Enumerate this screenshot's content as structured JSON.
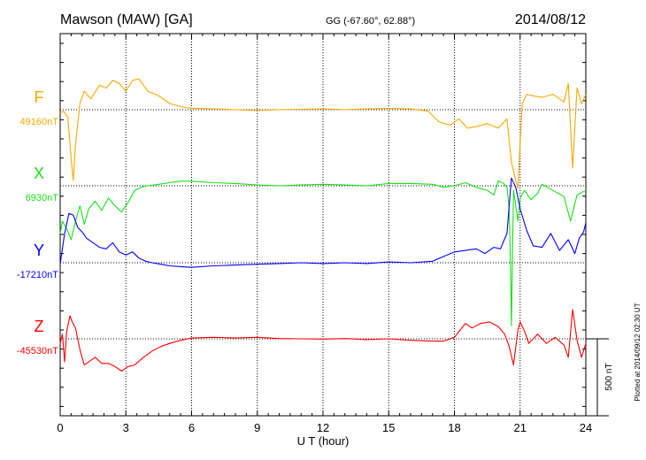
{
  "header": {
    "station": "Mawson (MAW)  [GA]",
    "coords": "GG (-67.60°,  62.88°)",
    "date": "2014/08/12"
  },
  "footer": {
    "plotted": "Plotted at 2014/09/12 02:30 UT",
    "scale": "500 nT"
  },
  "colors": {
    "F": "#f5a800",
    "X": "#19e019",
    "Y": "#0000ff",
    "Z": "#ff0000"
  },
  "chart_data": {
    "type": "line",
    "xlabel": "U T (hour)",
    "xlim": [
      0,
      24
    ],
    "xticks": [
      0,
      3,
      6,
      9,
      12,
      15,
      18,
      21,
      24
    ],
    "scale_bar_nT": 500,
    "grid": true,
    "series": [
      {
        "name": "F",
        "baseline_label": "49160nT",
        "baseline": 49160,
        "x": [
          0,
          0.15,
          0.35,
          0.5,
          0.6,
          0.7,
          0.9,
          1.1,
          1.4,
          1.8,
          2.1,
          2.4,
          2.7,
          3.0,
          3.3,
          3.6,
          4.0,
          4.5,
          5.0,
          5.5,
          6.0,
          7,
          8,
          9,
          10,
          11,
          12,
          13,
          14,
          15,
          16,
          16.8,
          17.3,
          17.8,
          18.2,
          18.6,
          19.0,
          19.5,
          20.0,
          20.4,
          20.6,
          20.8,
          20.9,
          21.0,
          21.1,
          21.3,
          21.6,
          22.0,
          22.5,
          23.0,
          23.2,
          23.4,
          23.6,
          23.8,
          24.0
        ],
        "y": [
          49140,
          49150,
          49110,
          48840,
          48700,
          48930,
          49200,
          49280,
          49230,
          49320,
          49300,
          49350,
          49330,
          49280,
          49350,
          49360,
          49280,
          49250,
          49200,
          49180,
          49170,
          49165,
          49160,
          49155,
          49160,
          49163,
          49165,
          49160,
          49165,
          49168,
          49165,
          49150,
          49080,
          49060,
          49100,
          49040,
          49050,
          49070,
          49040,
          49100,
          48820,
          48700,
          48650,
          48950,
          49200,
          49260,
          49250,
          49240,
          49260,
          49210,
          49330,
          48780,
          49300,
          49200,
          49260
        ]
      },
      {
        "name": "X",
        "baseline_label": "6930nT",
        "baseline": 6930,
        "x": [
          0,
          0.1,
          0.3,
          0.5,
          0.7,
          0.9,
          1.1,
          1.3,
          1.6,
          1.9,
          2.2,
          2.5,
          2.8,
          3.1,
          3.4,
          3.7,
          4.0,
          4.5,
          5.0,
          5.5,
          6.0,
          7,
          8,
          9,
          10,
          11,
          12,
          13,
          14,
          15,
          16,
          17,
          17.5,
          18.0,
          18.5,
          19.0,
          19.5,
          19.8,
          20.0,
          20.2,
          20.4,
          20.5,
          20.55,
          20.6,
          20.7,
          20.8,
          20.9,
          21.0,
          21.2,
          21.5,
          21.8,
          22.0,
          22.5,
          23.0,
          23.3,
          23.6,
          24.0
        ],
        "y": [
          6620,
          6700,
          6650,
          6580,
          6700,
          6800,
          6680,
          6780,
          6830,
          6770,
          6850,
          6800,
          6760,
          6820,
          6900,
          6920,
          6930,
          6940,
          6950,
          6960,
          6960,
          6950,
          6945,
          6935,
          6930,
          6935,
          6940,
          6935,
          6930,
          6945,
          6945,
          6940,
          6920,
          6930,
          6950,
          6920,
          6900,
          6870,
          6960,
          6950,
          6920,
          6780,
          6500,
          6020,
          6900,
          6800,
          6700,
          6850,
          6900,
          6840,
          6880,
          6940,
          6900,
          6860,
          6700,
          6870,
          6900
        ]
      },
      {
        "name": "Y",
        "baseline_label": "-17210nT",
        "baseline": -17210,
        "x": [
          0,
          0.2,
          0.4,
          0.6,
          0.8,
          1.0,
          1.2,
          1.5,
          1.8,
          2.1,
          2.4,
          2.7,
          3.0,
          3.3,
          3.6,
          3.9,
          4.2,
          4.6,
          5.0,
          5.5,
          6.0,
          7,
          8,
          9,
          10,
          11,
          12,
          13,
          14,
          15,
          16,
          17,
          17.5,
          18.0,
          18.5,
          19.0,
          19.4,
          19.8,
          20.1,
          20.4,
          20.6,
          20.8,
          21.0,
          21.3,
          21.6,
          22.0,
          22.4,
          22.8,
          23.2,
          23.5,
          23.7,
          23.9,
          24.0
        ],
        "y": [
          -17220,
          -17020,
          -16890,
          -16900,
          -16980,
          -17010,
          -17050,
          -17080,
          -17110,
          -17120,
          -17080,
          -17140,
          -17160,
          -17140,
          -17180,
          -17200,
          -17210,
          -17220,
          -17230,
          -17235,
          -17240,
          -17230,
          -17225,
          -17220,
          -17215,
          -17210,
          -17215,
          -17210,
          -17215,
          -17205,
          -17210,
          -17200,
          -17170,
          -17140,
          -17130,
          -17120,
          -17150,
          -17110,
          -17120,
          -17020,
          -16660,
          -16720,
          -16860,
          -17000,
          -17100,
          -17110,
          -17020,
          -17130,
          -17060,
          -17150,
          -17050,
          -17010,
          -16950
        ]
      },
      {
        "name": "Z",
        "baseline_label": "-45530nT",
        "baseline": -45530,
        "x": [
          0,
          0.1,
          0.2,
          0.3,
          0.45,
          0.55,
          0.7,
          0.9,
          1.1,
          1.3,
          1.6,
          1.9,
          2.2,
          2.5,
          2.8,
          3.1,
          3.4,
          3.8,
          4.2,
          4.6,
          5.0,
          5.5,
          6.0,
          7,
          8,
          9,
          10,
          11,
          12,
          13,
          14,
          15,
          16,
          17,
          17.5,
          18.0,
          18.5,
          18.8,
          19.2,
          19.6,
          20.0,
          20.3,
          20.5,
          20.7,
          20.9,
          21.0,
          21.2,
          21.4,
          21.8,
          22.2,
          22.6,
          23.0,
          23.2,
          23.4,
          23.6,
          23.8,
          24.0
        ],
        "y": [
          -45560,
          -45500,
          -45680,
          -45480,
          -45380,
          -45420,
          -45460,
          -45600,
          -45700,
          -45680,
          -45650,
          -45690,
          -45690,
          -45710,
          -45740,
          -45710,
          -45700,
          -45650,
          -45610,
          -45580,
          -45560,
          -45540,
          -45525,
          -45520,
          -45525,
          -45520,
          -45528,
          -45530,
          -45532,
          -45528,
          -45535,
          -45530,
          -45540,
          -45545,
          -45545,
          -45520,
          -45430,
          -45460,
          -45430,
          -45420,
          -45450,
          -45500,
          -45580,
          -45700,
          -45470,
          -45420,
          -45480,
          -45560,
          -45500,
          -45560,
          -45520,
          -45570,
          -45650,
          -45340,
          -45540,
          -45650,
          -45560
        ]
      }
    ]
  }
}
